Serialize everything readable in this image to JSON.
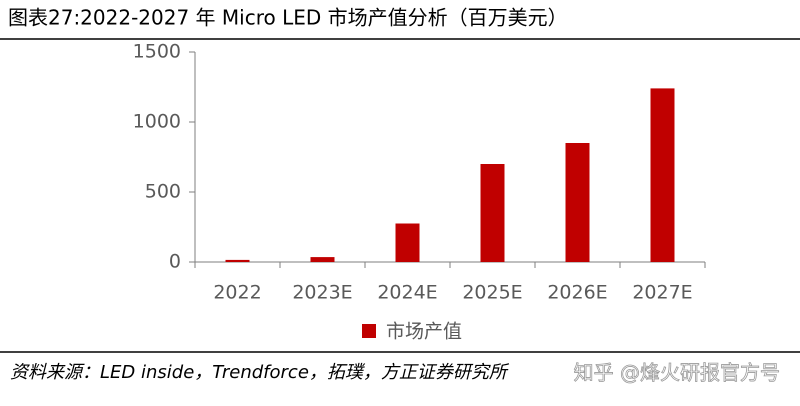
{
  "chart_data": {
    "type": "bar",
    "title": "图表27:2022-2027 年 Micro LED 市场产值分析（百万美元）",
    "categories": [
      "2022",
      "2023E",
      "2024E",
      "2025E",
      "2026E",
      "2027E"
    ],
    "series": [
      {
        "name": "市场产值",
        "color": "#c00000",
        "values": [
          15,
          35,
          275,
          700,
          850,
          1240
        ]
      }
    ],
    "ylim": [
      0,
      1500
    ],
    "yticks": [
      0,
      500,
      1000,
      1500
    ],
    "source": "资料来源：LED inside，Trendforce，拓璞，方正证券研究所",
    "watermark": "知乎 @烽火研报官方号"
  }
}
